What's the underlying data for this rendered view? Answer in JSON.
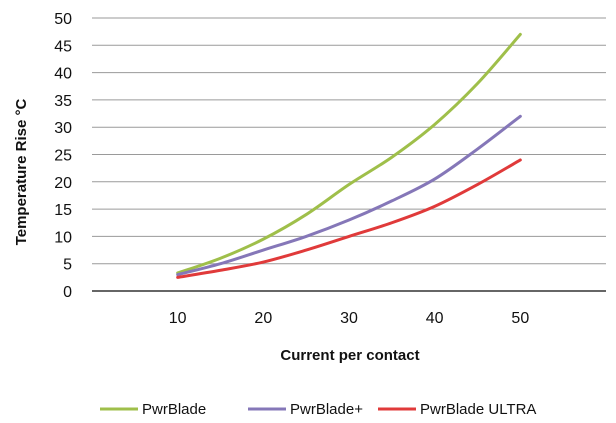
{
  "chart_data": {
    "type": "line",
    "xlabel": "Current per contact",
    "ylabel": "Temperature Rise °C",
    "xlim": [
      0,
      60
    ],
    "ylim": [
      0,
      50
    ],
    "x_ticks": [
      10,
      20,
      30,
      40,
      50
    ],
    "y_ticks": [
      0,
      5,
      10,
      15,
      20,
      25,
      30,
      35,
      40,
      45,
      50
    ],
    "grid": "horizontal",
    "legend_position": "bottom",
    "x": [
      10,
      15,
      20,
      25,
      30,
      35,
      40,
      45,
      50
    ],
    "series": [
      {
        "name": "PwrBlade",
        "color": "#9fbf4a",
        "values": [
          3.3,
          6.0,
          9.5,
          14.0,
          19.5,
          24.5,
          30.5,
          38.0,
          47.0
        ]
      },
      {
        "name": "PwrBlade+",
        "color": "#8577b8",
        "values": [
          3.0,
          5.0,
          7.5,
          10.0,
          13.0,
          16.5,
          20.5,
          26.0,
          32.0
        ]
      },
      {
        "name": "PwrBlade ULTRA",
        "color": "#e03a3a",
        "values": [
          2.5,
          3.8,
          5.3,
          7.5,
          10.0,
          12.5,
          15.5,
          19.5,
          24.0
        ]
      }
    ]
  }
}
